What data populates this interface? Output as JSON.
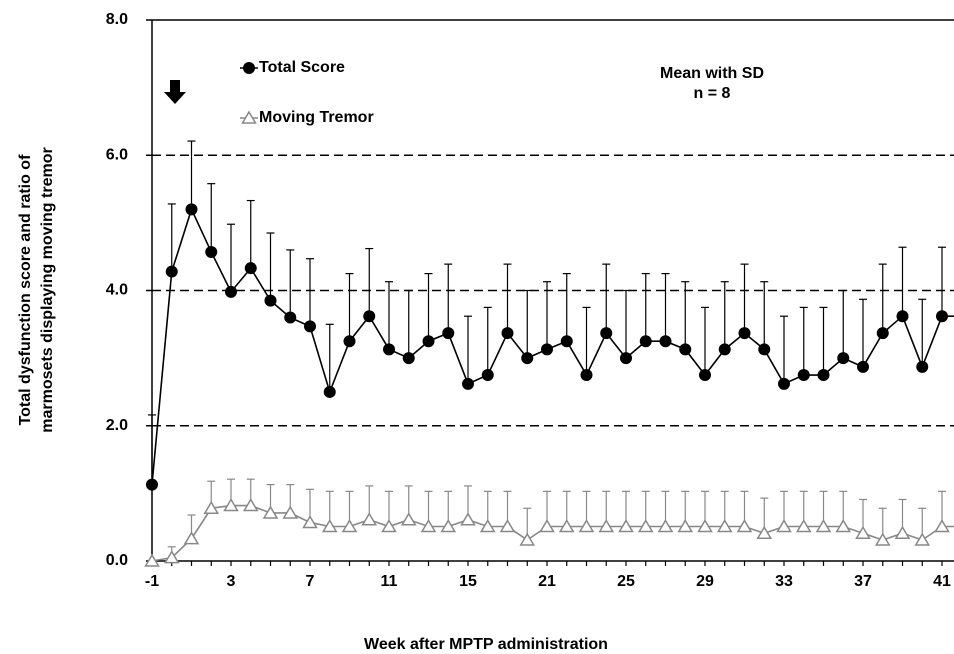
{
  "chart_data": {
    "type": "line",
    "x_label": "Week after  MPTP administration",
    "y_label": [
      "Total dysfunction score and ratio of",
      "marmosets displaying moving tremor"
    ],
    "annotations": [
      "Mean with SD",
      "n = 8"
    ],
    "legend": "upper left",
    "grid": true,
    "categories": [
      "-1",
      null,
      null,
      null,
      "3",
      null,
      null,
      null,
      "7",
      null,
      null,
      null,
      "11",
      null,
      null,
      null,
      "15",
      null,
      null,
      null,
      "21",
      null,
      null,
      null,
      "25",
      null,
      null,
      null,
      "29",
      null,
      null,
      null,
      "33",
      null,
      null,
      null,
      "37",
      null,
      null,
      null,
      "41"
    ],
    "ylim": [
      0,
      8
    ],
    "yticks": [
      {
        "value": 0,
        "label": "0.0"
      },
      {
        "value": 2,
        "label": "2.0"
      },
      {
        "value": 4,
        "label": "4.0"
      },
      {
        "value": 6,
        "label": "6.0"
      },
      {
        "value": 8,
        "label": "8.0"
      }
    ],
    "series": [
      {
        "name": "Total Score",
        "color": "#000000",
        "marker": "circle",
        "values": [
          1.13,
          4.28,
          5.2,
          4.57,
          3.98,
          4.33,
          3.85,
          3.6,
          3.47,
          2.5,
          3.25,
          3.62,
          3.13,
          3.0,
          3.25,
          3.37,
          2.62,
          2.75,
          3.37,
          3.0,
          3.13,
          3.25,
          2.75,
          3.37,
          3.0,
          3.25,
          3.25,
          3.13,
          2.75,
          3.13,
          3.37,
          3.13,
          2.62,
          2.75,
          2.75,
          3.0,
          2.87,
          3.37,
          3.62,
          2.87,
          3.62
        ],
        "errors": [
          1.03,
          1.0,
          1.01,
          1.01,
          1.0,
          1.0,
          1.0,
          1.0,
          1.0,
          1.0,
          1.0,
          1.0,
          1.0,
          1.0,
          1.0,
          1.02,
          1.0,
          1.0,
          1.02,
          1.0,
          1.0,
          1.0,
          1.0,
          1.02,
          1.0,
          1.0,
          1.0,
          1.0,
          1.0,
          1.0,
          1.02,
          1.0,
          1.0,
          1.0,
          1.0,
          1.0,
          1.0,
          1.02,
          1.02,
          1.0,
          1.02
        ]
      },
      {
        "name": "Moving Tremor",
        "color": "#888888",
        "marker": "triangle",
        "values": [
          0.0,
          0.05,
          0.33,
          0.78,
          0.82,
          0.82,
          0.71,
          0.71,
          0.57,
          0.51,
          0.51,
          0.61,
          0.51,
          0.61,
          0.51,
          0.51,
          0.61,
          0.51,
          0.51,
          0.31,
          0.51,
          0.51,
          0.51,
          0.51,
          0.51,
          0.51,
          0.51,
          0.51,
          0.51,
          0.51,
          0.51,
          0.41,
          0.51,
          0.51,
          0.51,
          0.51,
          0.41,
          0.31,
          0.41,
          0.31,
          0.51
        ],
        "errors": [
          0.0,
          0.16,
          0.35,
          0.4,
          0.39,
          0.39,
          0.42,
          0.42,
          0.49,
          0.52,
          0.52,
          0.5,
          0.52,
          0.5,
          0.52,
          0.52,
          0.5,
          0.52,
          0.52,
          0.47,
          0.52,
          0.52,
          0.52,
          0.52,
          0.52,
          0.52,
          0.52,
          0.52,
          0.52,
          0.52,
          0.52,
          0.52,
          0.52,
          0.52,
          0.52,
          0.52,
          0.5,
          0.47,
          0.5,
          0.47,
          0.52
        ]
      }
    ]
  }
}
